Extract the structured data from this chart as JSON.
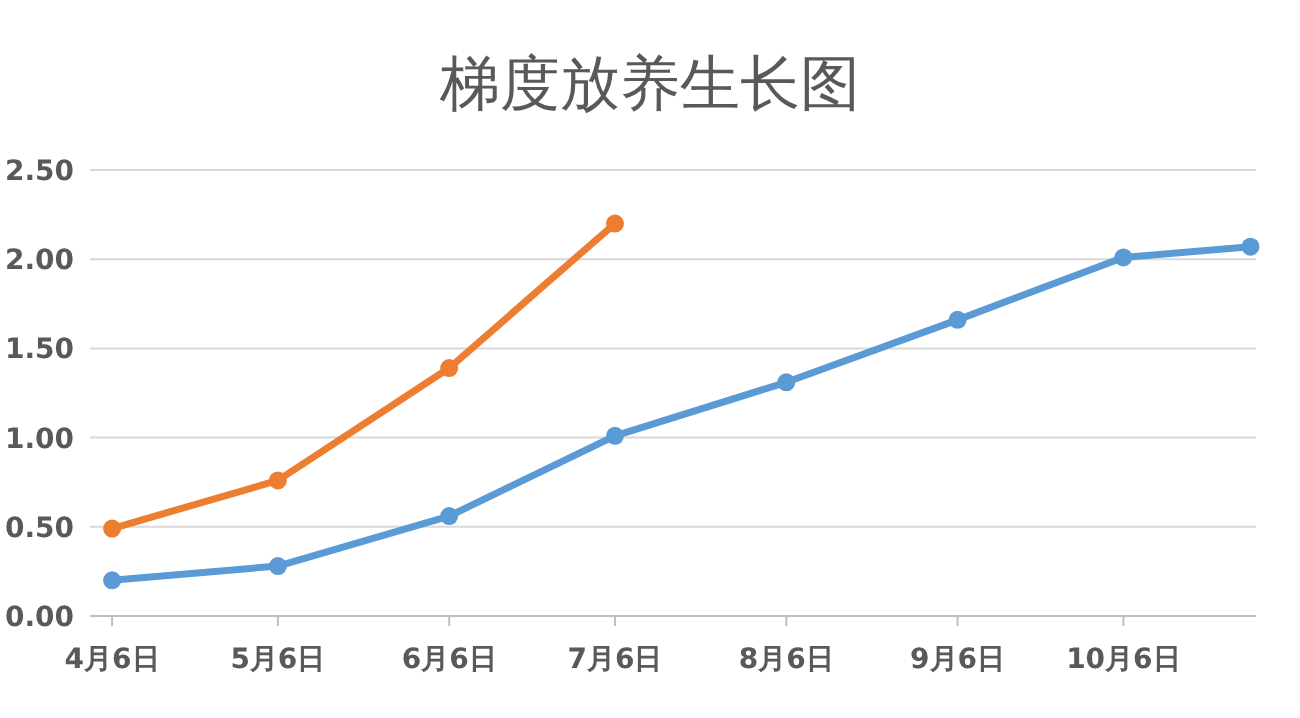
{
  "chart_data": {
    "type": "line",
    "title": "梯度放养生长图",
    "xlim": [
      "--04-02",
      "--10-30"
    ],
    "xticks": [
      {
        "value": "--04-06",
        "label": "4月6日"
      },
      {
        "value": "--05-06",
        "label": "5月6日"
      },
      {
        "value": "--06-06",
        "label": "6月6日"
      },
      {
        "value": "--07-06",
        "label": "7月6日"
      },
      {
        "value": "--08-06",
        "label": "8月6日"
      },
      {
        "value": "--09-06",
        "label": "9月6日"
      },
      {
        "value": "--10-06",
        "label": "10月6日"
      }
    ],
    "ylim": [
      0,
      2.5
    ],
    "yticks": [
      {
        "value": 0,
        "label": "0.00"
      },
      {
        "value": 0.5,
        "label": "0.50"
      },
      {
        "value": 1,
        "label": "1.00"
      },
      {
        "value": 1.5,
        "label": "1.50"
      },
      {
        "value": 2,
        "label": "2.00"
      },
      {
        "value": 2.5,
        "label": "2.50"
      }
    ],
    "grid": "y",
    "marker": "circle",
    "line_style": "solid",
    "series": [
      {
        "color": "#5b9bd5",
        "x": [
          "--04-06",
          "--05-06",
          "--06-06",
          "--07-06",
          "--08-06",
          "--09-06",
          "--10-06",
          "--10-29"
        ],
        "values": [
          0.2,
          0.28,
          0.56,
          1.01,
          1.31,
          1.66,
          2.01,
          2.07
        ]
      },
      {
        "color": "#ed7d31",
        "x": [
          "--04-06",
          "--05-06",
          "--06-06",
          "--07-06"
        ],
        "values": [
          0.49,
          0.76,
          1.39,
          2.2
        ]
      }
    ]
  }
}
